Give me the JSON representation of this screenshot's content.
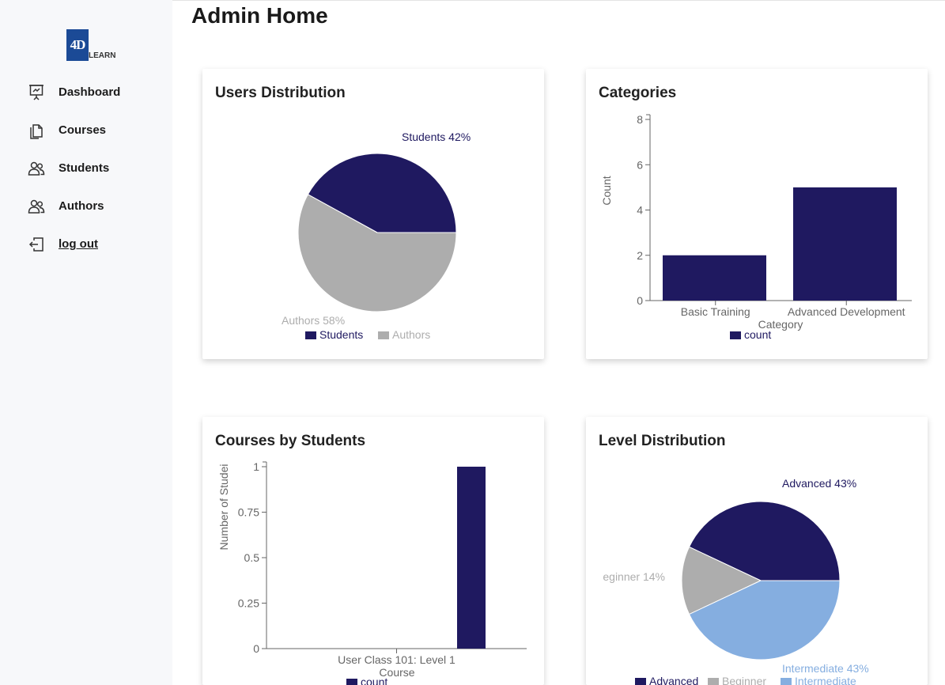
{
  "app": {
    "logo_mark": "4D",
    "logo_text": "LEARN"
  },
  "page": {
    "title": "Admin Home"
  },
  "sidebar": {
    "items": [
      {
        "label": "Dashboard",
        "icon": "presentation-board-icon"
      },
      {
        "label": "Courses",
        "icon": "documents-icon"
      },
      {
        "label": "Students",
        "icon": "users-icon"
      },
      {
        "label": "Authors",
        "icon": "users-icon"
      },
      {
        "label": "log out",
        "icon": "logout-icon"
      }
    ]
  },
  "colors": {
    "navy": "#1f1960",
    "gray": "#adadad",
    "light_blue": "#85aee0"
  },
  "cards": {
    "users": {
      "title": "Users Distribution"
    },
    "categories": {
      "title": "Categories"
    },
    "courses": {
      "title": "Courses by Students"
    },
    "levels": {
      "title": "Level Distribution"
    }
  },
  "chart_data": [
    {
      "type": "pie",
      "title": "Users Distribution",
      "slices": [
        {
          "name": "Students",
          "value": 42,
          "label": "Students 42%",
          "color": "#1f1960"
        },
        {
          "name": "Authors",
          "value": 58,
          "label": "Authors 58%",
          "color": "#adadad"
        }
      ],
      "legend": [
        "Students",
        "Authors"
      ]
    },
    {
      "type": "bar",
      "title": "Categories",
      "categories": [
        "Basic Training",
        "Advanced Development"
      ],
      "values": [
        2,
        5
      ],
      "xlabel": "Category",
      "ylabel": "Count",
      "ylim": [
        0,
        8
      ],
      "yticks": [
        "0",
        "2",
        "4",
        "6",
        "8"
      ],
      "legend": [
        "count"
      ],
      "color": "#1f1960"
    },
    {
      "type": "bar",
      "title": "Courses by Students",
      "categories": [
        "User Class 101: Level 1"
      ],
      "values": [
        1
      ],
      "xlabel": "Course",
      "ylabel": "Number of Studei",
      "ylim": [
        0,
        1
      ],
      "yticks": [
        "0",
        "0.25",
        "0.5",
        "0.75",
        "1"
      ],
      "legend": [
        "count"
      ],
      "color": "#1f1960"
    },
    {
      "type": "pie",
      "title": "Level Distribution",
      "slices": [
        {
          "name": "Advanced",
          "value": 43,
          "label": "Advanced 43%",
          "color": "#1f1960"
        },
        {
          "name": "Beginner",
          "value": 14,
          "label": "eginner 14%",
          "color": "#adadad"
        },
        {
          "name": "Intermediate",
          "value": 43,
          "label": "Intermediate 43%",
          "color": "#85aee0"
        }
      ],
      "legend": [
        "Advanced",
        "Beginner",
        "Intermediate"
      ]
    }
  ]
}
